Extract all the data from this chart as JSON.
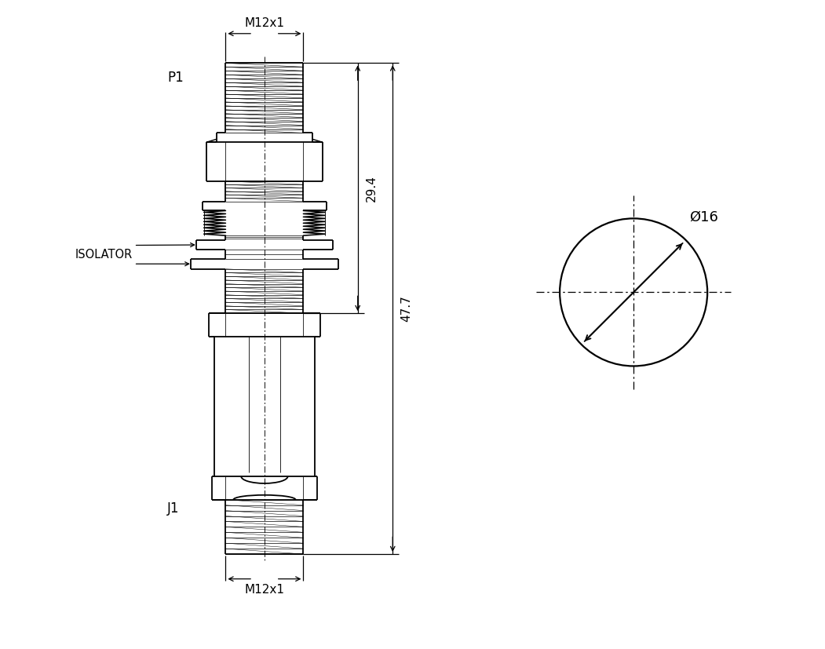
{
  "bg_color": "#ffffff",
  "line_color": "#000000",
  "dim_29_4": "29.4",
  "dim_47_7": "47.7",
  "dim_m12x1_top": "M12x1",
  "dim_m12x1_bot": "M12x1",
  "dim_dia16": "Ø16",
  "label_p1": "P1",
  "label_j1": "J1",
  "label_isolator": "ISOLATOR",
  "fig_width": 10.51,
  "fig_height": 8.27
}
